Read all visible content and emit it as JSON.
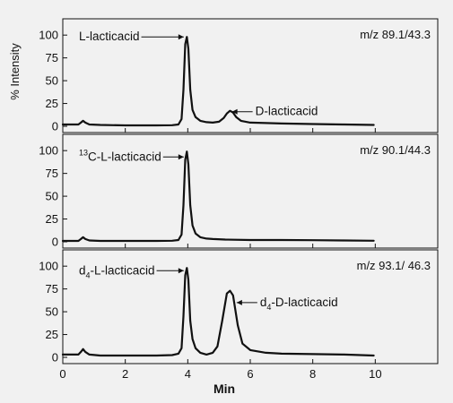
{
  "chart_data": {
    "type": "line",
    "ylabel": "% Intensity",
    "xlabel": "Min",
    "xlim": [
      0,
      12
    ],
    "x_ticks": [
      0,
      2,
      4,
      6,
      8,
      10
    ],
    "y_ticks": [
      0,
      25,
      50,
      75,
      100
    ],
    "grid": false,
    "panels": [
      {
        "transition": "m/z 89.1/43.3",
        "ylim": [
          0,
          110
        ],
        "series": [
          {
            "x": [
              0.0,
              0.3,
              0.5,
              0.58,
              0.65,
              0.72,
              0.85,
              1.2,
              2.0,
              3.0,
              3.5,
              3.7,
              3.8,
              3.86,
              3.92,
              3.97,
              4.02,
              4.08,
              4.15,
              4.25,
              4.4,
              4.6,
              4.8,
              5.0,
              5.15,
              5.25,
              5.35,
              5.45,
              5.55,
              5.7,
              6.0,
              7.0,
              8.0,
              9.0,
              9.95
            ],
            "y": [
              2,
              2,
              2,
              4,
              6,
              4,
              2,
              1.5,
              1,
              1,
              1.2,
              2,
              8,
              40,
              90,
              98,
              85,
              40,
              18,
              10,
              6,
              4.5,
              4,
              5,
              9,
              14,
              17,
              15,
              10,
              6,
              4,
              3,
              2.5,
              2,
              1.5
            ]
          }
        ],
        "annotations": [
          {
            "text": "L-lacticacid",
            "x": 3.9,
            "y": 98
          },
          {
            "text": "D-lacticacid",
            "x": 5.3,
            "y": 16
          }
        ]
      },
      {
        "transition": "m/z 90.1/44.3",
        "ylim": [
          0,
          110
        ],
        "series": [
          {
            "x": [
              0.0,
              0.3,
              0.5,
              0.58,
              0.65,
              0.72,
              0.85,
              1.2,
              2.0,
              3.0,
              3.5,
              3.7,
              3.8,
              3.86,
              3.92,
              3.97,
              4.02,
              4.08,
              4.15,
              4.25,
              4.4,
              4.6,
              4.8,
              5.2,
              6.0,
              7.0,
              8.0,
              9.0,
              9.95
            ],
            "y": [
              1,
              1,
              1,
              3,
              5,
              3,
              1.5,
              1,
              1,
              1,
              1.2,
              2,
              8,
              40,
              90,
              99,
              85,
              40,
              18,
              9,
              5,
              3.5,
              3,
              2.5,
              2,
              2,
              1.8,
              1.5,
              1.2
            ]
          }
        ],
        "annotations": [
          {
            "text_sup": "13",
            "text": "C-L-lacticacid",
            "x": 3.9,
            "y": 93
          }
        ]
      },
      {
        "transition": "m/z 93.1/ 46.3",
        "ylim": [
          0,
          110
        ],
        "series": [
          {
            "x": [
              0.0,
              0.3,
              0.5,
              0.58,
              0.65,
              0.72,
              0.85,
              1.2,
              2.0,
              3.0,
              3.5,
              3.7,
              3.8,
              3.86,
              3.92,
              3.97,
              4.02,
              4.08,
              4.15,
              4.25,
              4.4,
              4.6,
              4.8,
              4.95,
              5.1,
              5.25,
              5.35,
              5.45,
              5.6,
              5.75,
              6.0,
              6.5,
              7.0,
              8.0,
              9.0,
              9.95
            ],
            "y": [
              3,
              3,
              3,
              6,
              9,
              6,
              3,
              2,
              2,
              2,
              2.5,
              4,
              10,
              45,
              90,
              98,
              85,
              40,
              20,
              10,
              5,
              3,
              5,
              12,
              40,
              70,
              73,
              68,
              35,
              15,
              8,
              5,
              4,
              3.5,
              3,
              2
            ]
          }
        ],
        "annotations": [
          {
            "text_sub": "4",
            "text_prefix": "d",
            "text": "-L-lacticacid",
            "x": 3.9,
            "y": 95
          },
          {
            "text_sub": "4",
            "text_prefix": "d",
            "text": "-D-lacticacid",
            "x": 5.45,
            "y": 60
          }
        ]
      }
    ]
  }
}
